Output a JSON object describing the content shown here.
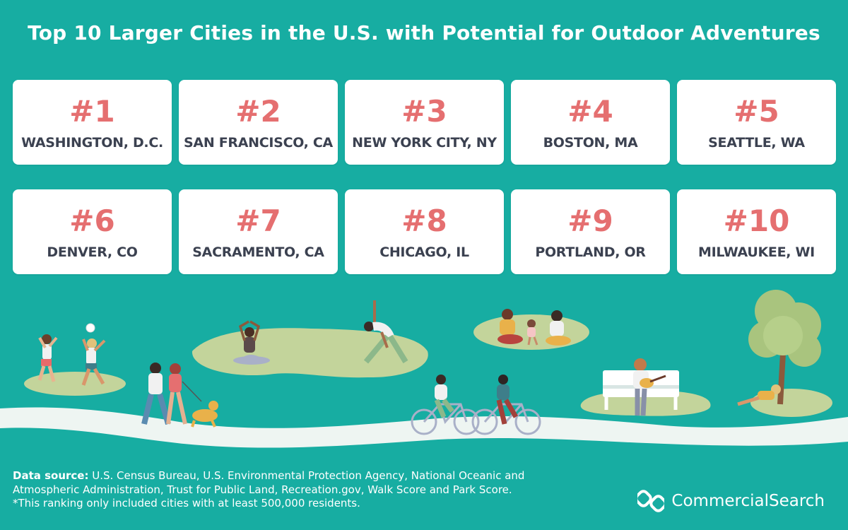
{
  "title": "Top 10 Larger Cities in the U.S. with Potential for Outdoor Adventures",
  "rankings": [
    {
      "rank": "#1",
      "city": "WASHINGTON, D.C."
    },
    {
      "rank": "#2",
      "city": "SAN FRANCISCO, CA"
    },
    {
      "rank": "#3",
      "city": "NEW YORK CITY, NY"
    },
    {
      "rank": "#4",
      "city": "BOSTON, MA"
    },
    {
      "rank": "#5",
      "city": "SEATTLE, WA"
    },
    {
      "rank": "#6",
      "city": "DENVER, CO"
    },
    {
      "rank": "#7",
      "city": "SACRAMENTO, CA"
    },
    {
      "rank": "#8",
      "city": "CHICAGO, IL"
    },
    {
      "rank": "#9",
      "city": "PORTLAND, OR"
    },
    {
      "rank": "#10",
      "city": "MILWAUKEE, WI"
    }
  ],
  "footer": {
    "source_label": "Data source:",
    "source_text": " U.S. Census Bureau, U.S. Environmental Protection Agency, National Oceanic and Atmospheric Administration, Trust for Public Land, Recreation.gov, Walk Score and Park Score.",
    "note": "*This ranking only included cities with at least 500,000 residents."
  },
  "brand": {
    "name": "CommercialSearch",
    "icon": "commercialsearch-logo-icon"
  },
  "colors": {
    "background": "#17ada2",
    "rank": "#e56f70",
    "city": "#3b4150",
    "grass": "#c3d49b",
    "path": "#eef5f2"
  }
}
